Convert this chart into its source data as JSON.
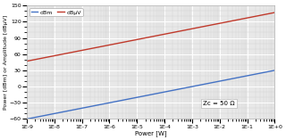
{
  "xmin": 1e-09,
  "xmax": 1.0,
  "ymin": -60,
  "ymax": 150,
  "yticks": [
    -60,
    -30,
    0,
    30,
    60,
    90,
    120,
    150
  ],
  "xlabel": "Power [W]",
  "ylabel": "Power [dBm] or Amplitude [dBμV]",
  "annotation": "Zc = 50 Ω",
  "line_dbm_color": "#4472c4",
  "line_dbuv_color": "#c0392b",
  "legend_dbm": "dBm",
  "legend_dbuv": "dBμV",
  "Zc": 50,
  "plot_bg_color": "#e8e8e8",
  "fig_bg_color": "#ffffff",
  "major_grid_color": "#ffffff",
  "minor_grid_color": "#d0d0d0"
}
